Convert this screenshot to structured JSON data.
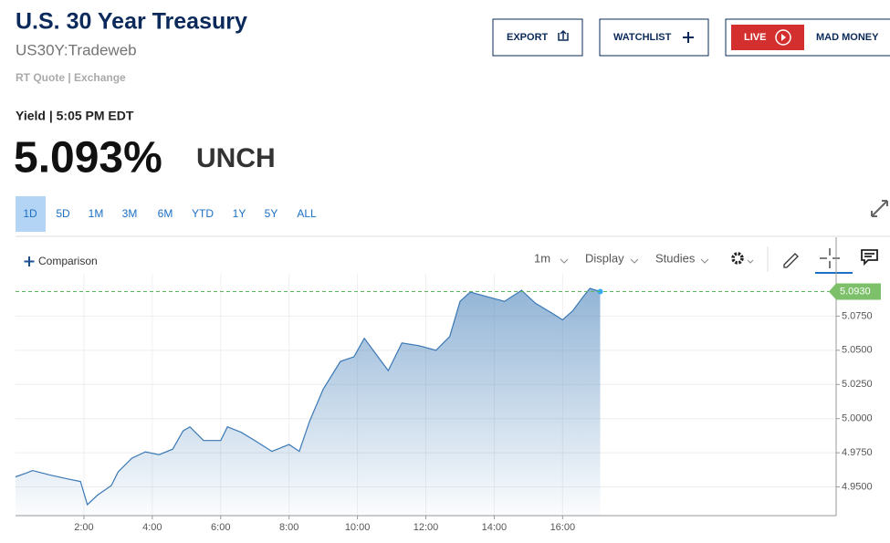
{
  "header": {
    "title": "U.S. 30 Year Treasury",
    "symbol": "US30Y:Tradeweb",
    "quote_source": "RT Quote | Exchange"
  },
  "buttons": [
    "EXPORT",
    "WATCHLIST",
    "LIVE",
    "MAD MONEY"
  ],
  "quote": {
    "label": "Yield | 5:05 PM EDT",
    "value": "5.093%",
    "change": "UNCH"
  },
  "ranges": [
    "1D",
    "5D",
    "1M",
    "3M",
    "6M",
    "YTD",
    "1Y",
    "5Y",
    "ALL"
  ],
  "toolbar": {
    "comparison": "Comparison",
    "interval": "1m",
    "display": "Display",
    "studies": "Studies"
  },
  "chart_data": {
    "type": "line",
    "x": [
      0.0,
      0.3,
      0.5,
      1.0,
      1.5,
      1.9,
      2.1,
      2.4,
      2.8,
      3.0,
      3.4,
      3.8,
      4.2,
      4.6,
      4.9,
      5.1,
      5.5,
      6.0,
      6.2,
      6.6,
      7.0,
      7.5,
      8.0,
      8.3,
      8.6,
      9.0,
      9.5,
      9.9,
      10.2,
      10.5,
      10.9,
      11.3,
      11.8,
      12.3,
      12.7,
      13.0,
      13.3,
      13.8,
      14.3,
      14.8,
      15.2,
      15.7,
      16.0,
      16.3,
      16.6,
      16.8,
      17.1
    ],
    "values": [
      4.9574,
      4.96,
      4.962,
      4.9588,
      4.956,
      4.954,
      4.937,
      4.944,
      4.951,
      4.961,
      4.971,
      4.9757,
      4.9736,
      4.9777,
      4.991,
      4.994,
      4.984,
      4.984,
      4.994,
      4.99,
      4.984,
      4.976,
      4.981,
      4.976,
      4.998,
      5.0216,
      5.0419,
      5.0453,
      5.0588,
      5.0486,
      5.0351,
      5.0554,
      5.0534,
      5.05,
      5.0601,
      5.0858,
      5.0926,
      5.0892,
      5.0858,
      5.0939,
      5.0845,
      5.077,
      5.0723,
      5.079,
      5.0892,
      5.0953,
      5.093
    ],
    "color": "#3a78b5",
    "xlim": [
      0,
      24
    ],
    "xticks": [
      {
        "value": 2,
        "label": "2:00"
      },
      {
        "value": 4,
        "label": "4:00"
      },
      {
        "value": 6,
        "label": "6:00"
      },
      {
        "value": 8,
        "label": "8:00"
      },
      {
        "value": 10,
        "label": "10:00"
      },
      {
        "value": 12,
        "label": "12:00"
      },
      {
        "value": 14,
        "label": "14:00"
      },
      {
        "value": 16,
        "label": "16:00"
      }
    ],
    "ylim": [
      4.929,
      5.106
    ],
    "yticks": [
      {
        "value": 4.95,
        "label": "4.9500"
      },
      {
        "value": 4.975,
        "label": "4.9750"
      },
      {
        "value": 5.0,
        "label": "5.0000"
      },
      {
        "value": 5.025,
        "label": "5.0250"
      },
      {
        "value": 5.05,
        "label": "5.0500"
      },
      {
        "value": 5.075,
        "label": "5.0750"
      }
    ],
    "last_value": {
      "value": 5.093,
      "label": "5.0930"
    },
    "grid": true
  }
}
